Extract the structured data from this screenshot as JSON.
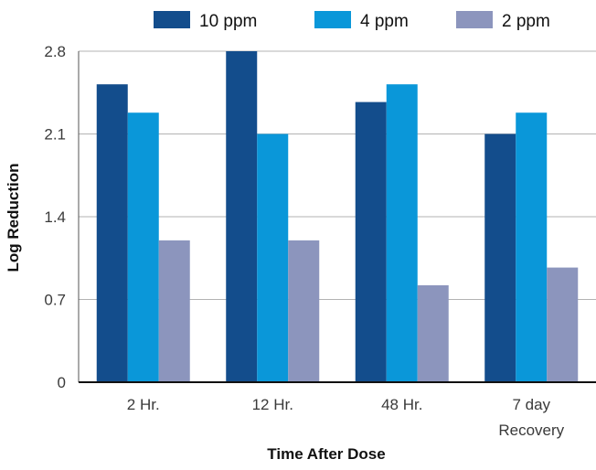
{
  "chart_data": {
    "type": "bar",
    "title": "",
    "xlabel": "Time After Dose",
    "ylabel": "Log Reduction",
    "categories": [
      [
        "2 Hr."
      ],
      [
        "12 Hr."
      ],
      [
        "48 Hr."
      ],
      [
        "7 day",
        "Recovery"
      ]
    ],
    "series": [
      {
        "name": "10 ppm",
        "color": "#134d8c",
        "values": [
          2.52,
          2.8,
          2.37,
          2.1
        ]
      },
      {
        "name": "4 ppm",
        "color": "#0a97d9",
        "values": [
          2.28,
          2.1,
          2.52,
          2.28
        ]
      },
      {
        "name": "2 ppm",
        "color": "#8c95bd",
        "values": [
          1.2,
          1.2,
          0.82,
          0.97
        ]
      }
    ],
    "yticks": [
      "0",
      "0.7",
      "1.4",
      "2.1",
      "2.8"
    ],
    "ylim": [
      0,
      2.8
    ],
    "grid": true,
    "legend_position": "top"
  }
}
